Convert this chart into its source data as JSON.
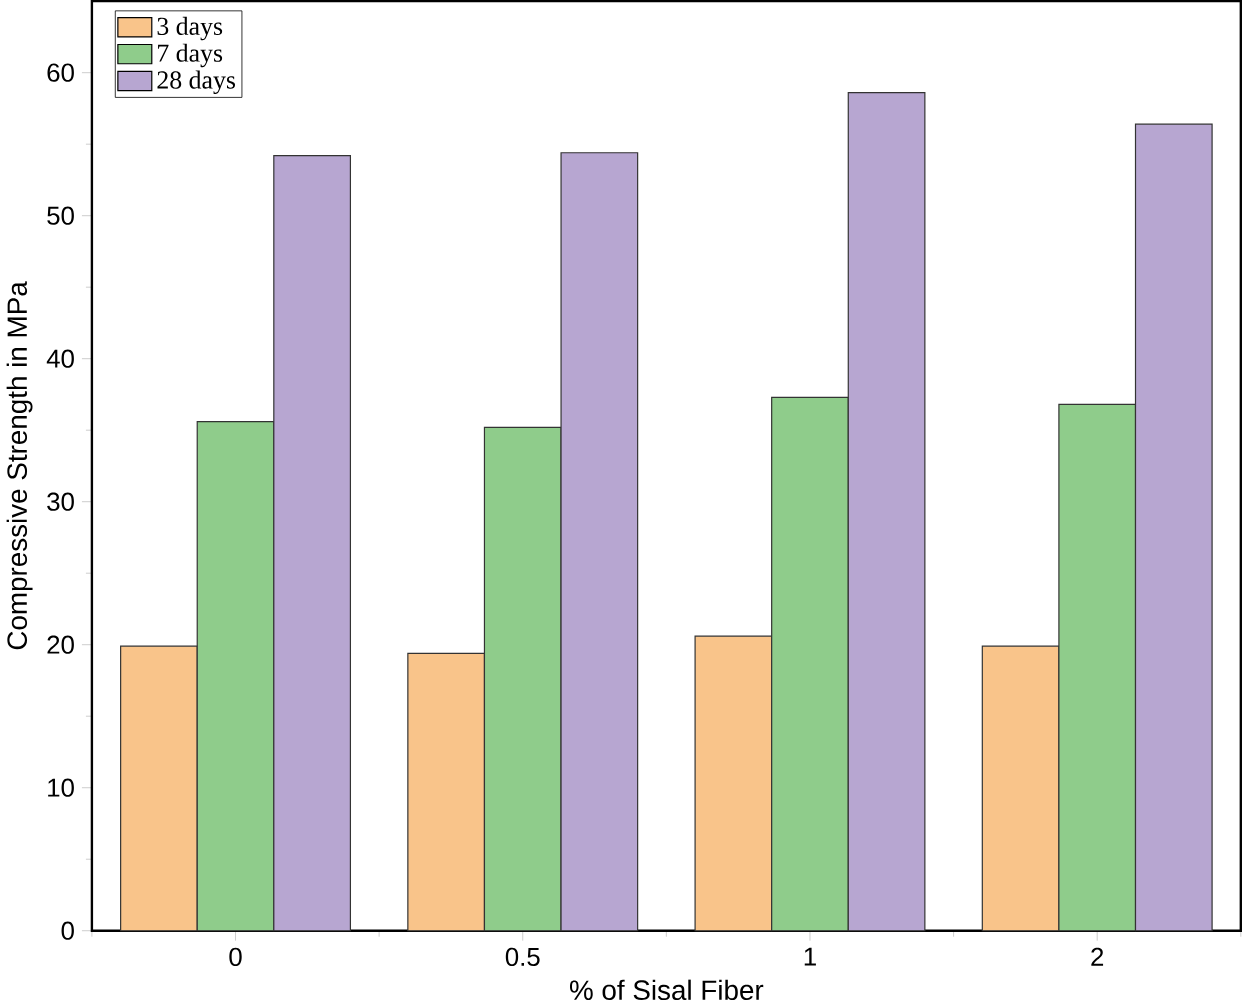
{
  "chart_data": {
    "type": "bar",
    "xlabel": "% of Sisal Fiber",
    "ylabel": "Compressive Strength in MPa",
    "categories": [
      "0",
      "0.5",
      "1",
      "2"
    ],
    "series": [
      {
        "name": "3 days",
        "color": "#f9c48a",
        "values": [
          19.9,
          19.4,
          20.6,
          19.9
        ]
      },
      {
        "name": "7 days",
        "color": "#8fcc8b",
        "values": [
          35.6,
          35.2,
          37.3,
          36.8
        ]
      },
      {
        "name": "28 days",
        "color": "#b7a6d1",
        "values": [
          54.2,
          54.4,
          58.6,
          56.4
        ]
      }
    ],
    "ylim": [
      0,
      65
    ],
    "yticks": [
      0,
      10,
      20,
      30,
      40,
      50,
      60
    ],
    "legend": "top left",
    "grid": false
  }
}
